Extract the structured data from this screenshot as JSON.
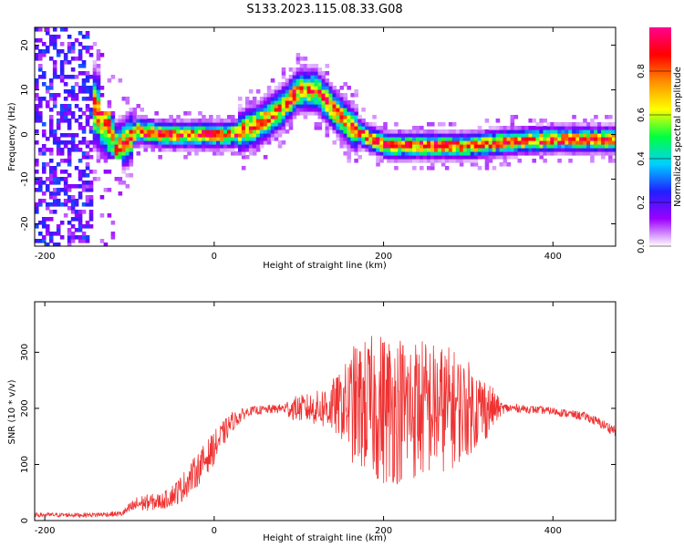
{
  "title": "S133.2023.115.08.33.G08",
  "chart_data": [
    {
      "type": "heatmap",
      "xlabel": "Height of straight line (km)",
      "ylabel": "Frequency (Hz)",
      "xlim": [
        -212,
        474
      ],
      "ylim": [
        -25,
        24
      ],
      "xticks": [
        -200,
        0,
        200,
        400
      ],
      "yticks": [
        -20,
        -10,
        0,
        10,
        20
      ],
      "colorbar": {
        "label": "Normalized spectral amplitude",
        "range": [
          0.0,
          1.0
        ],
        "ticks": [
          0.0,
          0.2,
          0.4,
          0.6,
          0.8
        ],
        "tick_labels": [
          "0.0",
          "0.2",
          "0.4",
          "0.6",
          "0.8"
        ],
        "colors": [
          "#ffffff",
          "#9b00ff",
          "#2020ff",
          "#00d0ff",
          "#00ff40",
          "#ffff00",
          "#ff9000",
          "#ff0000",
          "#ff0090"
        ]
      },
      "ridge": {
        "x": [
          -140,
          -125,
          -115,
          -100,
          -90,
          -60,
          -20,
          20,
          50,
          80,
          100,
          120,
          140,
          160,
          185,
          205,
          250,
          300,
          350,
          400,
          474
        ],
        "y": [
          6,
          2,
          -3,
          -1,
          1,
          0,
          0,
          0,
          2,
          6,
          10,
          10,
          6,
          2,
          -1,
          -2.5,
          -2.5,
          -2.5,
          -1.5,
          -1,
          -1
        ]
      }
    },
    {
      "type": "line",
      "xlabel": "Height of straight line (km)",
      "ylabel": "SNR (10 * v/v)",
      "xlim": [
        -212,
        474
      ],
      "ylim": [
        0,
        390
      ],
      "xticks": [
        -200,
        0,
        200,
        400
      ],
      "yticks": [
        0,
        100,
        200,
        300
      ],
      "color": "#ef3232",
      "envelope": {
        "x": [
          -212,
          -150,
          -110,
          -90,
          -60,
          -40,
          -20,
          0,
          20,
          40,
          80,
          90,
          120,
          150,
          165,
          200,
          240,
          280,
          320,
          340,
          360,
          400,
          440,
          474
        ],
        "center": [
          10,
          10,
          12,
          30,
          35,
          55,
          90,
          130,
          175,
          195,
          200,
          200,
          200,
          205,
          205,
          200,
          200,
          200,
          200,
          200,
          200,
          195,
          185,
          160
        ],
        "spread": [
          4,
          4,
          5,
          15,
          15,
          25,
          30,
          30,
          18,
          8,
          8,
          20,
          30,
          60,
          110,
          140,
          130,
          110,
          60,
          10,
          7,
          7,
          8,
          10
        ]
      }
    }
  ]
}
